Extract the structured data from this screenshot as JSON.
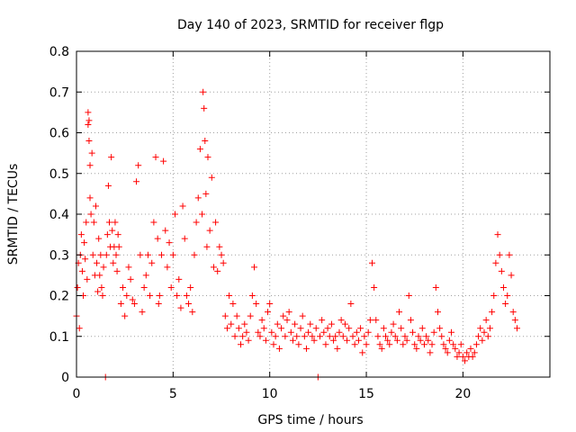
{
  "chart_data": {
    "type": "scatter",
    "title": "Day 140 of 2023, SRMTID for receiver flgp",
    "xlabel": "GPS time / hours",
    "ylabel": "SRMTID / TECUs",
    "xlim": [
      0,
      24.5
    ],
    "ylim": [
      0,
      0.8
    ],
    "xticks": [
      0,
      5,
      10,
      15,
      20
    ],
    "xtick_labels": [
      "0",
      "5",
      "10",
      "15",
      "20"
    ],
    "yticks": [
      0,
      0.1,
      0.2,
      0.3,
      0.4,
      0.5,
      0.6,
      0.7,
      0.8
    ],
    "ytick_labels": [
      "0",
      "0.1",
      "0.2",
      "0.3",
      "0.4",
      "0.5",
      "0.6",
      "0.7",
      "0.8"
    ],
    "grid": true,
    "marker": "+",
    "color": "#ff0000",
    "series": [
      {
        "name": "SRMTID flgp",
        "x": [
          0.0,
          0.05,
          0.1,
          0.15,
          0.2,
          0.25,
          0.3,
          0.35,
          0.4,
          0.45,
          0.5,
          0.55,
          0.6,
          0.6,
          0.65,
          0.65,
          0.7,
          0.7,
          0.75,
          0.8,
          0.85,
          0.9,
          0.95,
          1.0,
          1.05,
          1.1,
          1.15,
          1.2,
          1.25,
          1.3,
          1.35,
          1.4,
          1.5,
          1.55,
          1.6,
          1.65,
          1.7,
          1.75,
          1.8,
          1.85,
          1.9,
          1.95,
          2.0,
          2.05,
          2.1,
          2.15,
          2.2,
          2.3,
          2.4,
          2.5,
          2.6,
          2.7,
          2.8,
          2.9,
          3.0,
          3.1,
          3.2,
          3.3,
          3.4,
          3.5,
          3.6,
          3.7,
          3.8,
          3.9,
          4.0,
          4.1,
          4.2,
          4.25,
          4.3,
          4.4,
          4.5,
          4.6,
          4.7,
          4.8,
          4.9,
          5.0,
          5.1,
          5.2,
          5.3,
          5.4,
          5.5,
          5.6,
          5.7,
          5.8,
          5.9,
          6.0,
          6.1,
          6.2,
          6.3,
          6.4,
          6.5,
          6.55,
          6.6,
          6.65,
          6.7,
          6.75,
          6.8,
          6.9,
          7.0,
          7.1,
          7.2,
          7.3,
          7.4,
          7.5,
          7.6,
          7.7,
          7.8,
          7.9,
          8.0,
          8.1,
          8.2,
          8.3,
          8.4,
          8.5,
          8.6,
          8.7,
          8.8,
          8.9,
          9.0,
          9.1,
          9.2,
          9.3,
          9.4,
          9.5,
          9.6,
          9.7,
          9.8,
          9.9,
          10.0,
          10.1,
          10.2,
          10.3,
          10.4,
          10.5,
          10.6,
          10.7,
          10.8,
          10.9,
          11.0,
          11.1,
          11.2,
          11.3,
          11.4,
          11.5,
          11.6,
          11.7,
          11.8,
          11.9,
          12.0,
          12.1,
          12.2,
          12.3,
          12.4,
          12.5,
          12.6,
          12.7,
          12.8,
          12.9,
          13.0,
          13.1,
          13.2,
          13.3,
          13.4,
          13.5,
          13.6,
          13.7,
          13.8,
          13.9,
          14.0,
          14.1,
          14.2,
          14.3,
          14.4,
          14.5,
          14.6,
          14.7,
          14.8,
          14.9,
          15.0,
          15.1,
          15.2,
          15.3,
          15.4,
          15.5,
          15.6,
          15.7,
          15.8,
          15.9,
          16.0,
          16.1,
          16.2,
          16.3,
          16.4,
          16.5,
          16.6,
          16.7,
          16.8,
          16.9,
          17.0,
          17.1,
          17.2,
          17.3,
          17.4,
          17.5,
          17.6,
          17.7,
          17.8,
          17.9,
          18.0,
          18.1,
          18.2,
          18.3,
          18.4,
          18.5,
          18.6,
          18.7,
          18.8,
          18.9,
          19.0,
          19.1,
          19.2,
          19.3,
          19.4,
          19.5,
          19.6,
          19.7,
          19.8,
          19.9,
          20.0,
          20.1,
          20.2,
          20.3,
          20.4,
          20.5,
          20.6,
          20.7,
          20.8,
          20.9,
          21.0,
          21.1,
          21.2,
          21.3,
          21.4,
          21.5,
          21.6,
          21.7,
          21.8,
          21.9,
          22.0,
          22.1,
          22.2,
          22.3,
          22.4,
          22.5,
          22.6,
          22.7,
          22.8
        ],
        "y": [
          0.15,
          0.22,
          0.28,
          0.12,
          0.3,
          0.35,
          0.26,
          0.2,
          0.33,
          0.29,
          0.38,
          0.24,
          0.62,
          0.65,
          0.58,
          0.63,
          0.44,
          0.52,
          0.4,
          0.55,
          0.3,
          0.38,
          0.25,
          0.42,
          0.28,
          0.21,
          0.34,
          0.25,
          0.3,
          0.22,
          0.2,
          0.27,
          0.0,
          0.3,
          0.35,
          0.47,
          0.38,
          0.32,
          0.54,
          0.36,
          0.28,
          0.32,
          0.38,
          0.3,
          0.26,
          0.35,
          0.32,
          0.18,
          0.22,
          0.15,
          0.2,
          0.27,
          0.24,
          0.19,
          0.18,
          0.48,
          0.52,
          0.3,
          0.16,
          0.22,
          0.25,
          0.3,
          0.2,
          0.28,
          0.38,
          0.54,
          0.34,
          0.18,
          0.2,
          0.3,
          0.53,
          0.36,
          0.27,
          0.33,
          0.22,
          0.3,
          0.4,
          0.2,
          0.24,
          0.17,
          0.42,
          0.34,
          0.2,
          0.18,
          0.22,
          0.16,
          0.3,
          0.38,
          0.44,
          0.56,
          0.4,
          0.7,
          0.66,
          0.58,
          0.45,
          0.32,
          0.54,
          0.36,
          0.49,
          0.27,
          0.38,
          0.26,
          0.32,
          0.3,
          0.28,
          0.15,
          0.12,
          0.2,
          0.13,
          0.18,
          0.1,
          0.15,
          0.12,
          0.08,
          0.1,
          0.13,
          0.11,
          0.09,
          0.15,
          0.2,
          0.27,
          0.18,
          0.11,
          0.1,
          0.14,
          0.12,
          0.09,
          0.16,
          0.18,
          0.11,
          0.08,
          0.1,
          0.13,
          0.07,
          0.12,
          0.15,
          0.1,
          0.14,
          0.16,
          0.11,
          0.09,
          0.13,
          0.1,
          0.08,
          0.12,
          0.15,
          0.1,
          0.07,
          0.11,
          0.13,
          0.1,
          0.09,
          0.12,
          0.0,
          0.1,
          0.14,
          0.11,
          0.08,
          0.12,
          0.1,
          0.13,
          0.09,
          0.1,
          0.07,
          0.11,
          0.14,
          0.1,
          0.13,
          0.09,
          0.12,
          0.18,
          0.1,
          0.08,
          0.11,
          0.09,
          0.12,
          0.06,
          0.1,
          0.08,
          0.11,
          0.14,
          0.28,
          0.22,
          0.14,
          0.1,
          0.08,
          0.07,
          0.12,
          0.1,
          0.09,
          0.08,
          0.11,
          0.13,
          0.1,
          0.09,
          0.16,
          0.12,
          0.08,
          0.1,
          0.09,
          0.2,
          0.14,
          0.11,
          0.08,
          0.07,
          0.1,
          0.09,
          0.12,
          0.08,
          0.1,
          0.09,
          0.06,
          0.08,
          0.11,
          0.22,
          0.16,
          0.12,
          0.1,
          0.08,
          0.07,
          0.06,
          0.09,
          0.11,
          0.08,
          0.07,
          0.05,
          0.06,
          0.08,
          0.05,
          0.04,
          0.06,
          0.05,
          0.07,
          0.05,
          0.06,
          0.08,
          0.1,
          0.12,
          0.09,
          0.11,
          0.14,
          0.1,
          0.12,
          0.16,
          0.2,
          0.28,
          0.35,
          0.3,
          0.26,
          0.22,
          0.18,
          0.2,
          0.3,
          0.25,
          0.16,
          0.14,
          0.12
        ]
      }
    ]
  }
}
